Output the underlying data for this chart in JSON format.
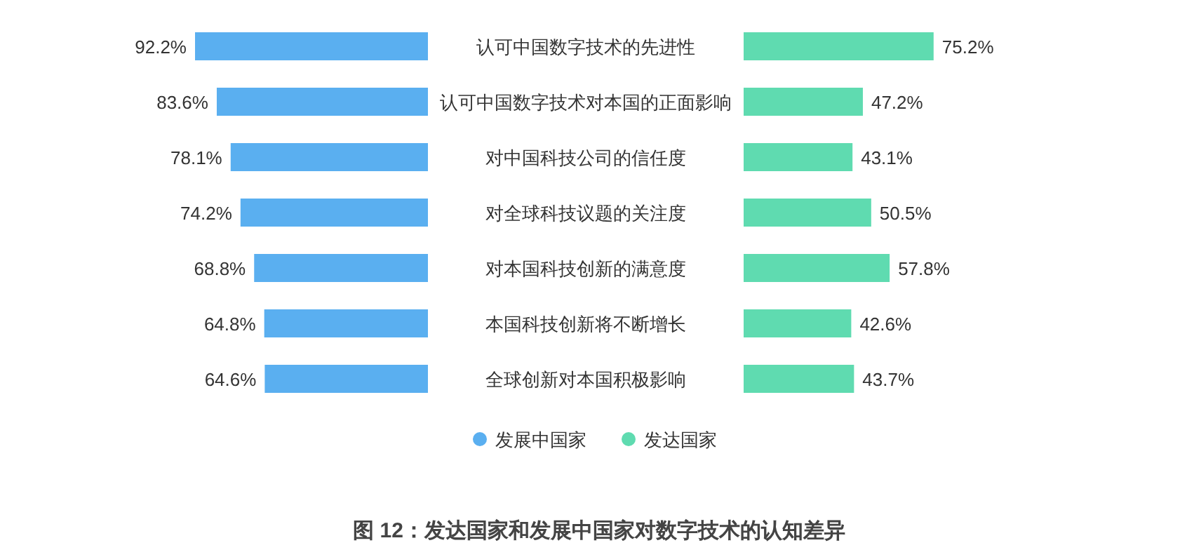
{
  "chart_data": [
    {
      "type": "bar",
      "orientation": "horizontal",
      "title": "图 12：发达国家和发展中国家对数字技术的认知差异",
      "categories": [
        "认可中国数字技术的先进性",
        "认可中国数字技术对本国的正面影响",
        "对中国科技公司的信任度",
        "对全球科技议题的关注度",
        "对本国科技创新的满意度",
        "本国科技创新将不断增长",
        "全球创新对本国积极影响"
      ],
      "series": [
        {
          "name": "发展中国家",
          "color": "#5aaff0",
          "values": [
            92.2,
            83.6,
            78.1,
            74.2,
            68.8,
            64.8,
            64.6
          ],
          "value_labels": [
            "92.2%",
            "83.6%",
            "78.1%",
            "74.2%",
            "68.8%",
            "64.8%",
            "64.6%"
          ]
        }
      ],
      "legend": "bottom"
    },
    {
      "type": "bar",
      "orientation": "horizontal",
      "categories": [
        null,
        null,
        null,
        null,
        null,
        null,
        null
      ],
      "series": [
        {
          "name": "发达国家",
          "color": "#5fdbb0",
          "values": [
            75.2,
            47.2,
            43.1,
            50.5,
            57.8,
            42.6,
            43.7
          ],
          "value_labels": [
            "75.2%",
            "47.2%",
            "43.1%",
            "50.5%",
            "57.8%",
            "42.6%",
            "43.7%"
          ]
        }
      ],
      "legend": "bottom"
    }
  ]
}
